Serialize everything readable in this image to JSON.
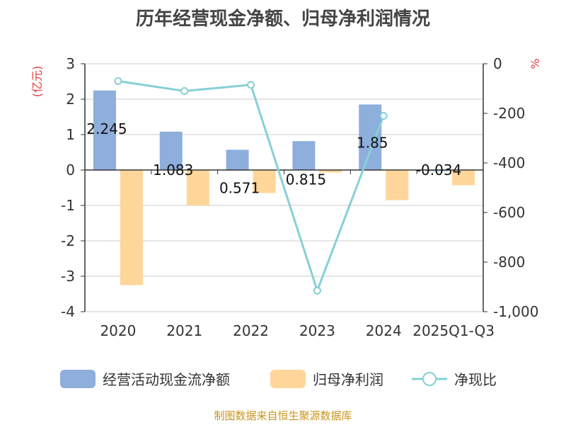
{
  "title": "历年经营现金净额、归母净利润情况",
  "source": "制图数据来自恒生聚源数据库",
  "colors": {
    "cash_flow": "#8eaedc",
    "net_profit": "#ffd699",
    "ratio": "#86d0d6",
    "axis_unit": "#e23c3c",
    "source_text": "#c8961e"
  },
  "chart_data": {
    "type": "bar",
    "title": "历年经营现金净额、归母净利润情况",
    "categories": [
      "2020",
      "2021",
      "2022",
      "2023",
      "2024",
      "2025Q1-Q3"
    ],
    "y_left": {
      "label": "(亿元)",
      "ylim": [
        -4,
        3
      ],
      "ticks": [
        "3",
        "2",
        "1",
        "0",
        "-1",
        "-2",
        "-3",
        "-4"
      ]
    },
    "y_right": {
      "label": "%",
      "ylim": [
        -1000,
        0
      ],
      "ticks": [
        "0",
        "-200",
        "-400",
        "-600",
        "-800",
        "-1,000"
      ]
    },
    "series": [
      {
        "name": "经营活动现金流净额",
        "type": "bar",
        "axis": "left",
        "values": [
          2.245,
          1.083,
          0.571,
          0.815,
          1.85,
          -0.034
        ],
        "labels": [
          "2.245",
          "1.083",
          "0.571",
          "0.815",
          "1.85",
          "-0.034"
        ]
      },
      {
        "name": "归母净利润",
        "type": "bar",
        "axis": "left",
        "values": [
          -3.25,
          -1.0,
          -0.65,
          -0.07,
          -0.85,
          -0.43
        ]
      },
      {
        "name": "净现比",
        "type": "line",
        "axis": "right",
        "values": [
          -70,
          -110,
          -85,
          -915,
          -210,
          null
        ]
      }
    ],
    "grid": true,
    "legend": "bottom"
  }
}
